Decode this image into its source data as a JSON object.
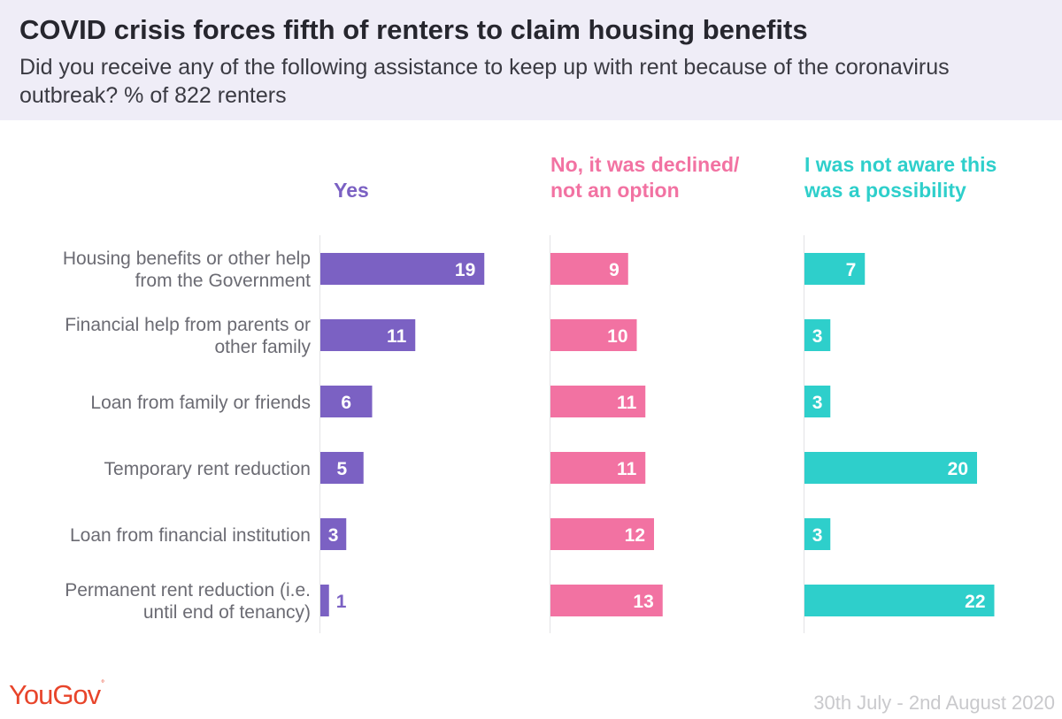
{
  "title": "COVID crisis forces fifth of renters to claim housing benefits",
  "subtitle": "Did you receive any of the following assistance to keep up with rent because of the coronavirus outbreak? % of 822 renters",
  "brand": "YouGov",
  "date_range": "30th July - 2nd August 2020",
  "colors": {
    "header_bg": "#efedf7",
    "yes": "#7b61c3",
    "declined": "#f272a2",
    "not_aware": "#2ecfcb",
    "brand": "#e8452b"
  },
  "chart_data": {
    "type": "bar",
    "orientation": "horizontal",
    "categories": [
      [
        "Housing benefits or other help",
        "from the Government"
      ],
      [
        "Financial help from parents or",
        "other family"
      ],
      [
        "Loan from family or friends"
      ],
      [
        "Temporary rent reduction"
      ],
      [
        "Loan from financial institution"
      ],
      [
        "Permanent rent reduction (i.e.",
        "until end of tenancy)"
      ]
    ],
    "series": [
      {
        "name": [
          "Yes"
        ],
        "color": "#7b61c3",
        "values": [
          19,
          11,
          6,
          5,
          3,
          1
        ]
      },
      {
        "name": [
          "No, it was declined/",
          "not an option"
        ],
        "color": "#f272a2",
        "values": [
          9,
          10,
          11,
          11,
          12,
          13
        ]
      },
      {
        "name": [
          "I was not aware this",
          "was a possibility"
        ],
        "color": "#2ecfcb",
        "values": [
          7,
          3,
          3,
          20,
          3,
          22
        ]
      }
    ],
    "unit": "%",
    "xlim": [
      0,
      22
    ],
    "grid": false,
    "legend": "column headers above each panel"
  }
}
